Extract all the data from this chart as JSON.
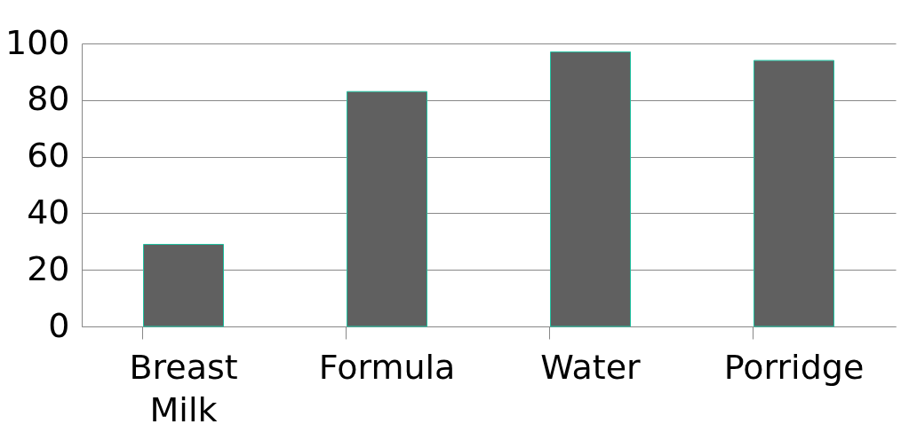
{
  "chart_data": {
    "type": "bar",
    "categories": [
      "Breast Milk",
      "Formula",
      "Water",
      "Porridge"
    ],
    "values": [
      29,
      83,
      97,
      94
    ],
    "color": "#606060",
    "ylim": [
      0,
      100
    ],
    "yticks": [
      0,
      20,
      40,
      60,
      80,
      100
    ],
    "grid": "y"
  }
}
